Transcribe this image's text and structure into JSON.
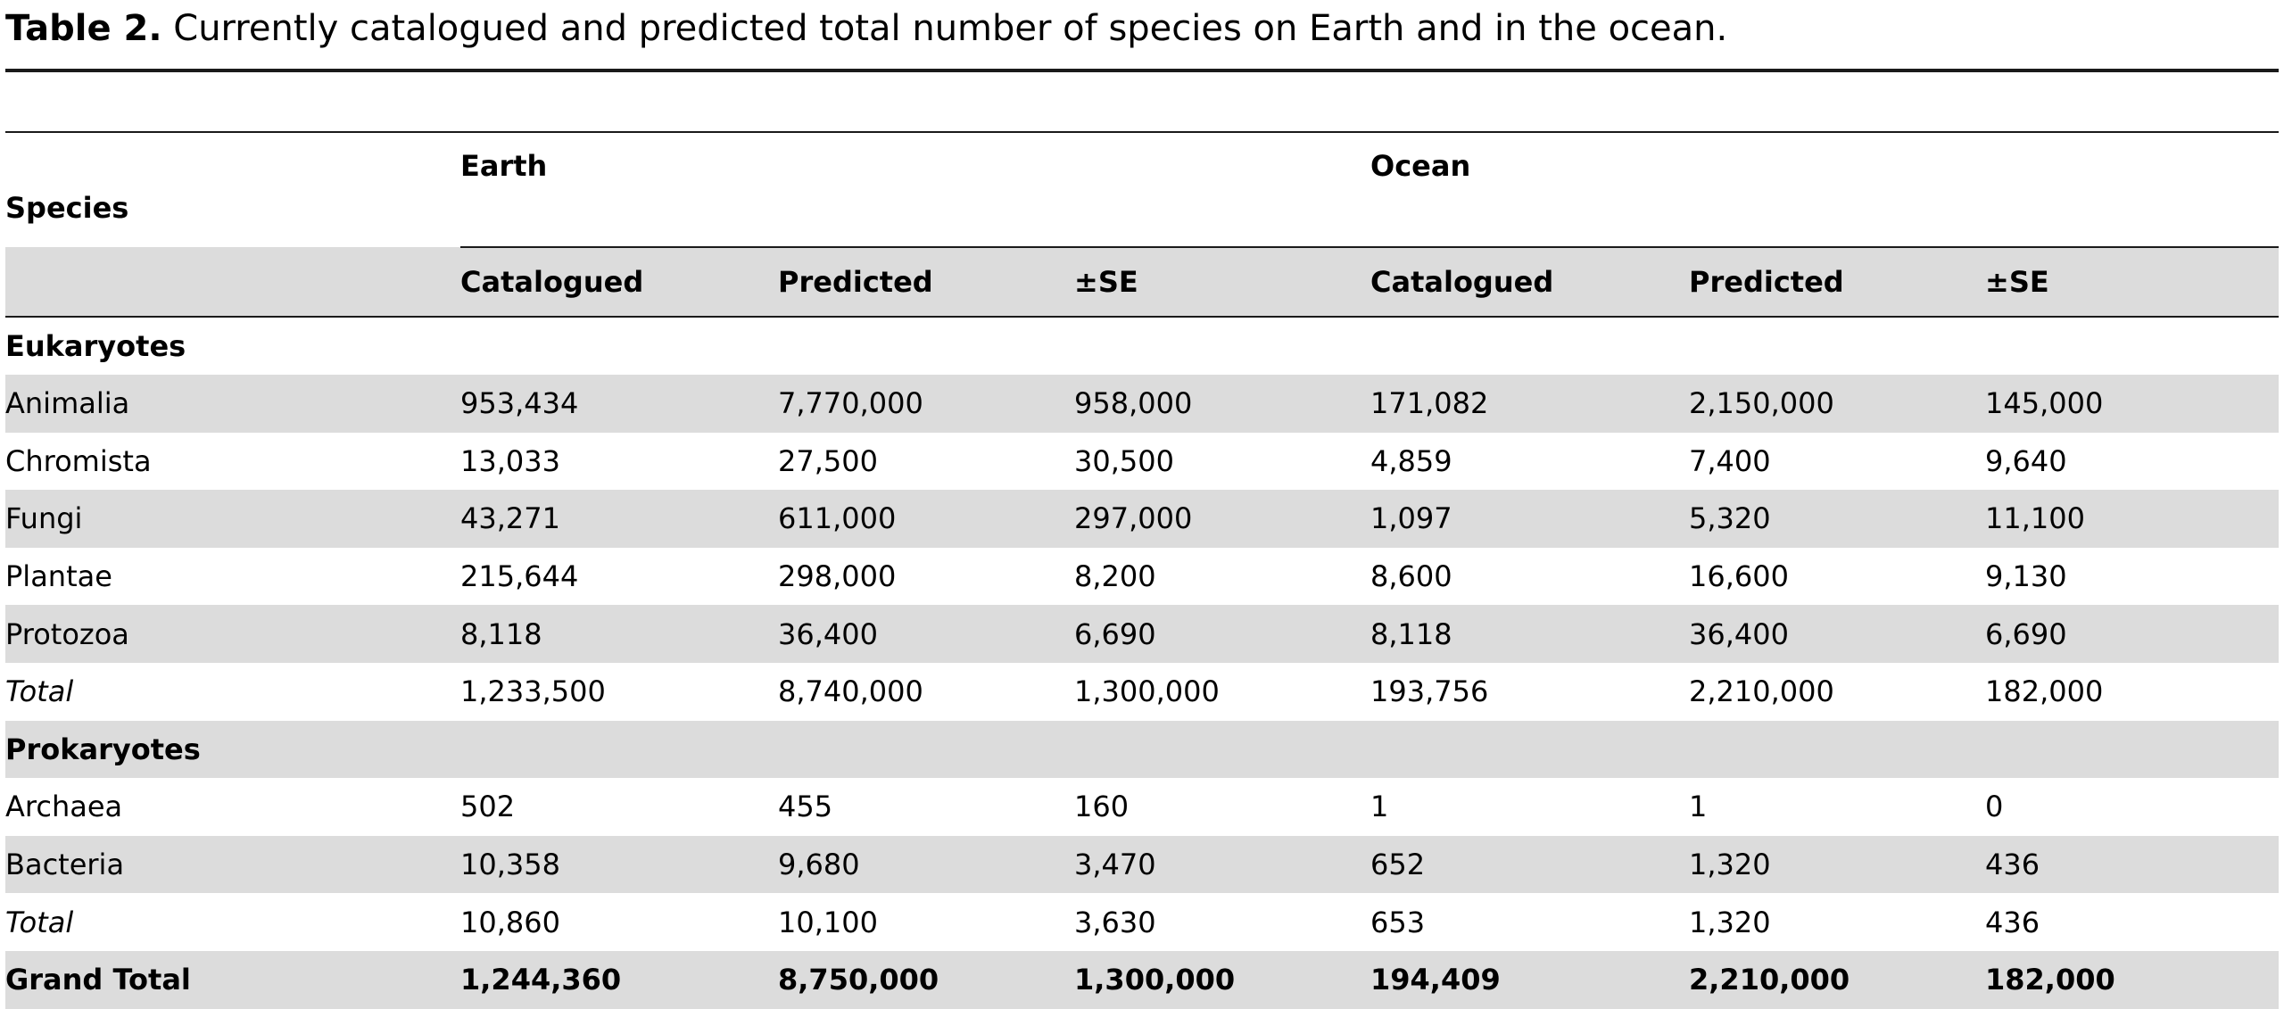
{
  "caption": {
    "label": "Table 2.",
    "text": " Currently catalogued and predicted total number of species on Earth and in the ocean."
  },
  "table": {
    "header": {
      "species": "Species",
      "earth": "Earth",
      "ocean": "Ocean",
      "sub": [
        "Catalogued",
        "Predicted",
        "±SE",
        "Catalogued",
        "Predicted",
        "±SE"
      ]
    },
    "sections": [
      {
        "name": "Eukaryotes",
        "rows": [
          {
            "label": "Animalia",
            "values": [
              "953,434",
              "7,770,000",
              "958,000",
              "171,082",
              "2,150,000",
              "145,000"
            ]
          },
          {
            "label": "Chromista",
            "values": [
              "13,033",
              "27,500",
              "30,500",
              "4,859",
              "7,400",
              "9,640"
            ]
          },
          {
            "label": "Fungi",
            "values": [
              "43,271",
              "611,000",
              "297,000",
              "1,097",
              "5,320",
              "11,100"
            ]
          },
          {
            "label": "Plantae",
            "values": [
              "215,644",
              "298,000",
              "8,200",
              "8,600",
              "16,600",
              "9,130"
            ]
          },
          {
            "label": "Protozoa",
            "values": [
              "8,118",
              "36,400",
              "6,690",
              "8,118",
              "36,400",
              "6,690"
            ]
          },
          {
            "label": "Total",
            "values": [
              "1,233,500",
              "8,740,000",
              "1,300,000",
              "193,756",
              "2,210,000",
              "182,000"
            ]
          }
        ]
      },
      {
        "name": "Prokaryotes",
        "rows": [
          {
            "label": "Archaea",
            "values": [
              "502",
              "455",
              "160",
              "1",
              "1",
              "0"
            ]
          },
          {
            "label": "Bacteria",
            "values": [
              "10,358",
              "9,680",
              "3,470",
              "652",
              "1,320",
              "436"
            ]
          },
          {
            "label": "Total",
            "values": [
              "10,860",
              "10,100",
              "3,630",
              "653",
              "1,320",
              "436"
            ]
          }
        ]
      }
    ],
    "grand_total": {
      "label": "Grand Total",
      "values": [
        "1,244,360",
        "8,750,000",
        "1,300,000",
        "194,409",
        "2,210,000",
        "182,000"
      ]
    }
  }
}
